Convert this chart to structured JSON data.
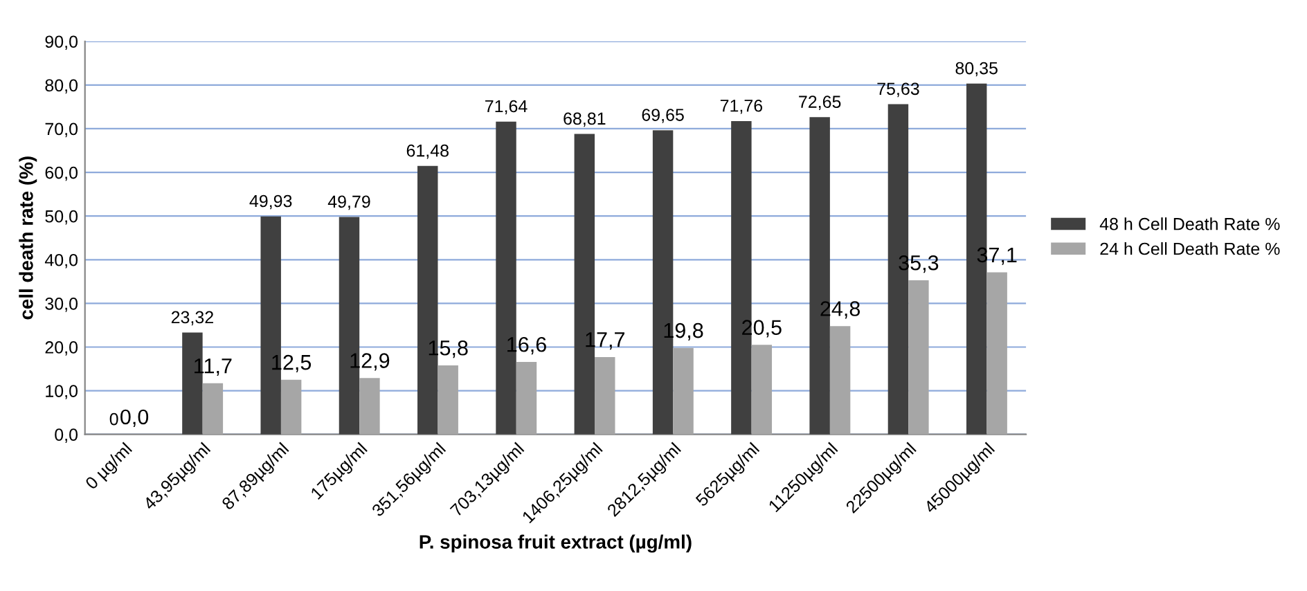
{
  "chart_data": {
    "type": "bar",
    "xlabel": "P. spinosa fruit extract (µg/ml)",
    "ylabel": "cell death rate (%)",
    "categories": [
      "0 µg/ml",
      "43,95µg/ml",
      "87,89µg/ml",
      "175µg/ml",
      "351,56µg/ml",
      "703,13µg/ml",
      "1406,25µg/ml",
      "2812,5µg/ml",
      "5625µg/ml",
      "11250µg/ml",
      "22500µg/ml",
      "45000µg/ml"
    ],
    "series": [
      {
        "name": "48 h Cell Death Rate %",
        "color": "#404040",
        "values": [
          0,
          23.32,
          49.93,
          49.79,
          61.48,
          71.64,
          68.81,
          69.65,
          71.76,
          72.65,
          75.63,
          80.35
        ],
        "value_labels": [
          "0",
          "23,32",
          "49,93",
          "49,79",
          "61,48",
          "71,64",
          "68,81",
          "69,65",
          "71,76",
          "72,65",
          "75,63",
          "80,35"
        ]
      },
      {
        "name": "24 h Cell Death Rate %",
        "color": "#a6a6a6",
        "values": [
          0,
          11.7,
          12.5,
          12.9,
          15.8,
          16.6,
          17.7,
          19.8,
          20.5,
          24.8,
          35.3,
          37.1
        ],
        "value_labels": [
          "0,0",
          "11,7",
          "12,5",
          "12,9",
          "15,8",
          "16,6",
          "17,7",
          "19,8",
          "20,5",
          "24,8",
          "35,3",
          "37,1"
        ]
      }
    ],
    "ylim": [
      0,
      90
    ],
    "yticks": [
      {
        "value": 0,
        "label": "0,0"
      },
      {
        "value": 10,
        "label": "10,0"
      },
      {
        "value": 20,
        "label": "20,0"
      },
      {
        "value": 30,
        "label": "30,0"
      },
      {
        "value": 40,
        "label": "40,0"
      },
      {
        "value": 50,
        "label": "50,0"
      },
      {
        "value": 60,
        "label": "60,0"
      },
      {
        "value": 70,
        "label": "70,0"
      },
      {
        "value": 80,
        "label": "80,0"
      },
      {
        "value": 90,
        "label": "90,0"
      }
    ],
    "grid": "y",
    "legend": "right"
  }
}
